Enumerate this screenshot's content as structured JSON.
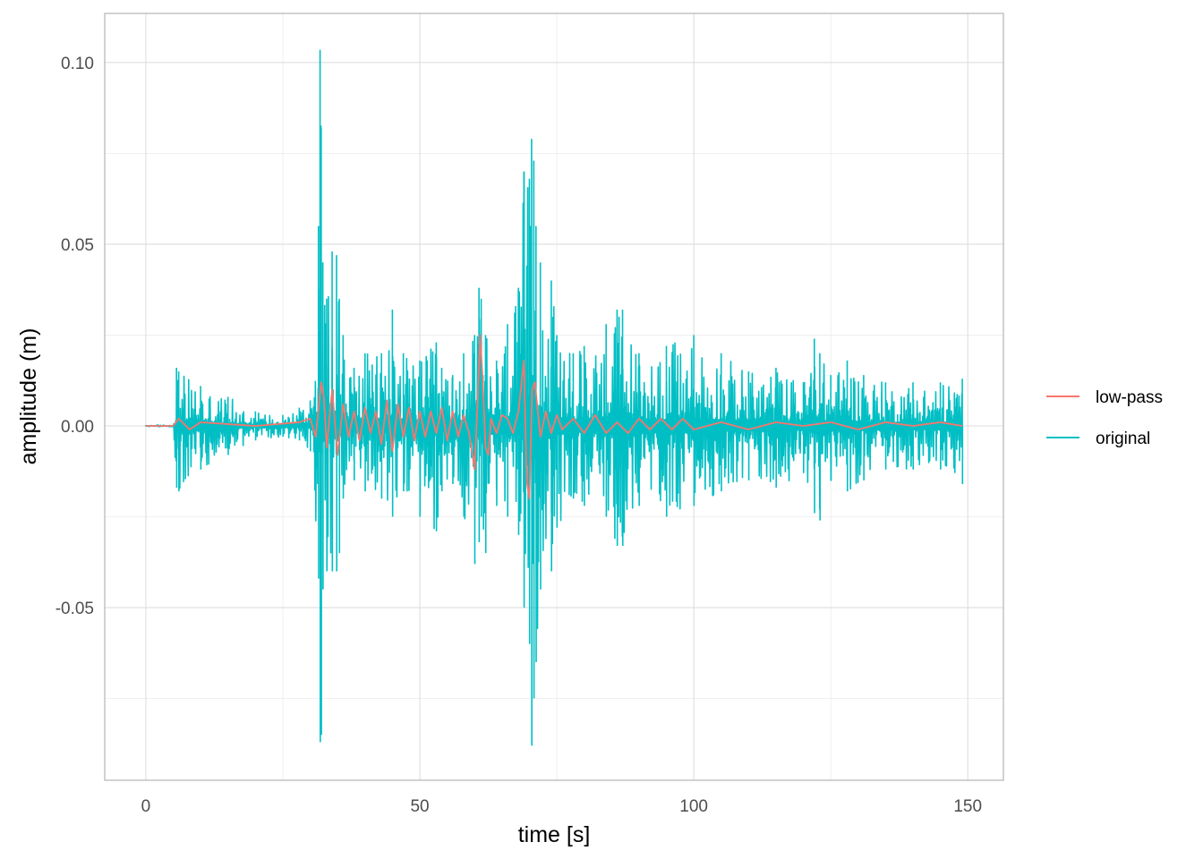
{
  "chart_data": {
    "type": "line",
    "title": "",
    "xlabel": "time [s]",
    "ylabel": "amplitude (m)",
    "xlim": [
      -7.5,
      156.5
    ],
    "ylim": [
      -0.0975,
      0.1135
    ],
    "x_ticks": [
      0,
      50,
      100,
      150
    ],
    "x_tick_labels": [
      "0",
      "50",
      "100",
      "150"
    ],
    "y_ticks": [
      -0.05,
      0.0,
      0.05,
      0.1
    ],
    "y_tick_labels": [
      "-0.05",
      "0.00",
      "0.05",
      "0.10"
    ],
    "grid": true,
    "legend_position": "right",
    "series": [
      {
        "name": "original",
        "color": "#00BFC4",
        "note_envelope": "dense oscillation",
        "x": [
          0,
          5,
          5.6,
          6,
          10,
          15,
          20,
          25,
          28,
          30,
          31.5,
          31.8,
          32,
          32.3,
          33,
          34,
          34.8,
          35.3,
          36,
          38,
          40,
          43,
          45,
          47,
          50,
          53,
          54,
          56,
          58,
          60,
          60.8,
          61.2,
          62,
          64,
          66,
          68,
          69,
          70,
          70.4,
          70.8,
          71.2,
          72,
          74,
          75,
          78,
          80,
          84,
          86,
          87,
          90,
          95,
          100,
          105,
          110,
          115,
          120,
          122,
          123,
          125,
          128,
          131,
          135,
          140,
          145,
          149
        ],
        "upper": [
          0.0002,
          0.0003,
          0.016,
          0.015,
          0.011,
          0.008,
          0.004,
          0.003,
          0.005,
          0.007,
          0.055,
          0.1035,
          0.082,
          0.045,
          0.035,
          0.048,
          0.047,
          0.035,
          0.025,
          0.016,
          0.02,
          0.02,
          0.032,
          0.02,
          0.018,
          0.023,
          0.016,
          0.014,
          0.02,
          0.025,
          0.038,
          0.035,
          0.025,
          0.018,
          0.028,
          0.038,
          0.07,
          0.068,
          0.079,
          0.073,
          0.055,
          0.045,
          0.04,
          0.025,
          0.02,
          0.022,
          0.028,
          0.032,
          0.032,
          0.02,
          0.022,
          0.025,
          0.02,
          0.015,
          0.016,
          0.012,
          0.024,
          0.02,
          0.014,
          0.018,
          0.014,
          0.012,
          0.012,
          0.012,
          0.013
        ],
        "lower": [
          -0.0002,
          -0.0003,
          -0.017,
          -0.018,
          -0.012,
          -0.008,
          -0.004,
          -0.003,
          -0.004,
          -0.007,
          -0.042,
          -0.087,
          -0.085,
          -0.045,
          -0.04,
          -0.04,
          -0.04,
          -0.035,
          -0.02,
          -0.015,
          -0.018,
          -0.02,
          -0.025,
          -0.018,
          -0.025,
          -0.029,
          -0.018,
          -0.016,
          -0.025,
          -0.038,
          -0.032,
          -0.025,
          -0.035,
          -0.022,
          -0.025,
          -0.03,
          -0.05,
          -0.06,
          -0.088,
          -0.075,
          -0.065,
          -0.045,
          -0.04,
          -0.028,
          -0.02,
          -0.022,
          -0.025,
          -0.033,
          -0.033,
          -0.022,
          -0.025,
          -0.022,
          -0.018,
          -0.015,
          -0.017,
          -0.013,
          -0.024,
          -0.026,
          -0.015,
          -0.018,
          -0.015,
          -0.012,
          -0.012,
          -0.012,
          -0.016
        ]
      },
      {
        "name": "low-pass",
        "color": "#F8766D",
        "x": [
          0,
          5,
          6,
          8,
          10,
          20,
          28,
          30,
          31,
          32,
          32.5,
          33,
          34,
          35,
          36,
          37,
          38,
          39,
          40,
          41,
          42,
          43,
          44,
          45,
          46,
          47,
          48,
          49,
          50,
          51,
          52,
          53,
          54,
          55,
          56,
          57,
          58,
          59,
          60,
          60.5,
          61,
          61.5,
          62,
          62.5,
          63,
          64,
          65,
          66,
          67,
          68,
          69,
          69.5,
          70,
          70.5,
          71,
          72,
          73,
          74,
          75,
          76,
          78,
          80,
          82,
          84,
          86,
          88,
          90,
          92,
          94,
          96,
          98,
          100,
          105,
          110,
          115,
          120,
          125,
          130,
          135,
          140,
          145,
          149
        ],
        "y": [
          0.0,
          0.0,
          0.002,
          -0.001,
          0.001,
          0.0,
          0.001,
          0.002,
          -0.003,
          0.012,
          0.008,
          -0.006,
          0.01,
          -0.008,
          0.006,
          -0.003,
          0.004,
          -0.004,
          0.005,
          -0.002,
          0.004,
          -0.005,
          0.007,
          -0.007,
          0.006,
          -0.003,
          0.005,
          -0.004,
          0.004,
          -0.003,
          0.004,
          -0.002,
          0.005,
          -0.004,
          0.004,
          -0.003,
          0.003,
          -0.002,
          -0.012,
          0.005,
          0.025,
          0.012,
          -0.006,
          -0.008,
          0.002,
          -0.002,
          0.003,
          0.002,
          -0.002,
          0.004,
          0.018,
          -0.015,
          -0.02,
          0.01,
          0.012,
          -0.003,
          0.004,
          -0.002,
          0.003,
          -0.001,
          0.002,
          -0.002,
          0.003,
          -0.002,
          0.001,
          -0.002,
          0.002,
          -0.001,
          0.002,
          -0.001,
          0.002,
          -0.001,
          0.001,
          -0.001,
          0.001,
          0.0,
          0.001,
          -0.001,
          0.001,
          0.0,
          0.001,
          0.0
        ]
      }
    ]
  }
}
